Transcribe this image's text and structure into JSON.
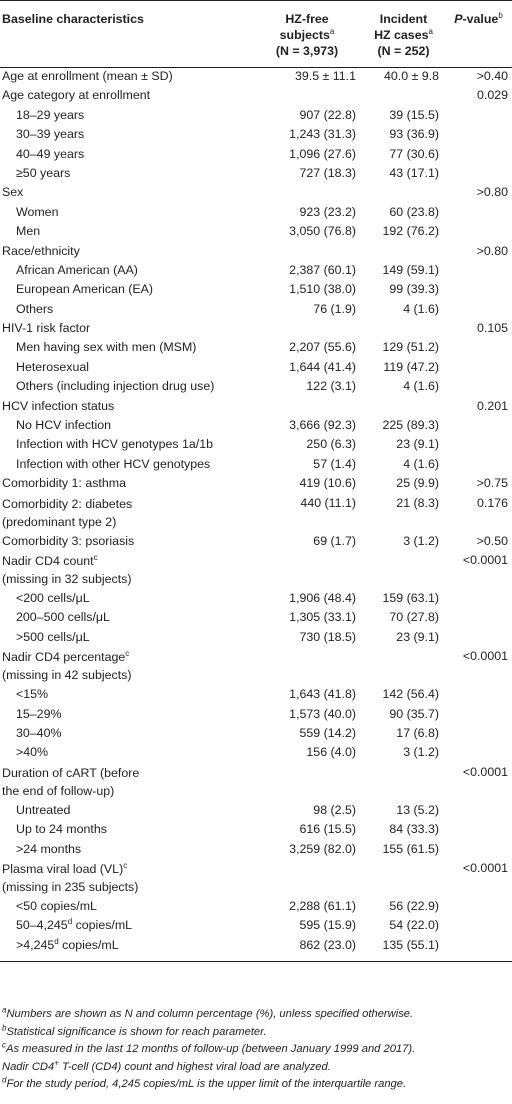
{
  "header": {
    "col1": "Baseline characteristics",
    "col2_line1": "HZ-free",
    "col2_line2": "subjects",
    "col2_sup": "a",
    "col2_line3": "(N = 3,973)",
    "col3_line1": "Incident",
    "col3_line2": "HZ cases",
    "col3_sup": "a",
    "col3_line3": "(N = 252)",
    "col4_italic": "P",
    "col4_rest": "-value",
    "col4_sup": "b"
  },
  "rows": [
    {
      "label": "Age at enrollment (mean ± SD)",
      "a": "39.5 ± 11.1",
      "b": "40.0 ± 9.8",
      "p": ">0.40"
    },
    {
      "label": "Age category at enrollment",
      "a": "",
      "b": "",
      "p": "0.029"
    },
    {
      "label": "18–29 years",
      "a": "907 (22.8)",
      "b": "39 (15.5)",
      "p": ""
    },
    {
      "label": "30–39 years",
      "a": "1,243 (31.3)",
      "b": "93 (36.9)",
      "p": ""
    },
    {
      "label": "40–49 years",
      "a": "1,096 (27.6)",
      "b": "77 (30.6)",
      "p": ""
    },
    {
      "label": "≥50 years",
      "a": "727 (18.3)",
      "b": "43 (17.1)",
      "p": ""
    },
    {
      "label": "Sex",
      "a": "",
      "b": "",
      "p": ">0.80"
    },
    {
      "label": "Women",
      "a": "923 (23.2)",
      "b": "60 (23.8)",
      "p": ""
    },
    {
      "label": "Men",
      "a": "3,050 (76.8)",
      "b": "192 (76.2)",
      "p": ""
    },
    {
      "label": "Race/ethnicity",
      "a": "",
      "b": "",
      "p": ">0.80"
    },
    {
      "label": "African American (AA)",
      "a": "2,387 (60.1)",
      "b": "149 (59.1)",
      "p": ""
    },
    {
      "label": "European American (EA)",
      "a": "1,510 (38.0)",
      "b": "99 (39.3)",
      "p": ""
    },
    {
      "label": "Others",
      "a": "76 (1.9)",
      "b": "4 (1.6)",
      "p": ""
    },
    {
      "label": "HIV-1 risk factor",
      "a": "",
      "b": "",
      "p": "0.105"
    },
    {
      "label": "Men having sex with men (MSM)",
      "a": "2,207 (55.6)",
      "b": "129 (51.2)",
      "p": ""
    },
    {
      "label": "Heterosexual",
      "a": "1,644 (41.4)",
      "b": "119 (47.2)",
      "p": ""
    },
    {
      "label": "Others (including injection drug use)",
      "a": "122 (3.1)",
      "b": "4 (1.6)",
      "p": ""
    },
    {
      "label": "HCV infection status",
      "a": "",
      "b": "",
      "p": "0.201"
    },
    {
      "label": "No HCV infection",
      "a": "3,666 (92.3)",
      "b": "225 (89.3)",
      "p": ""
    },
    {
      "label": "Infection with HCV genotypes 1a/1b",
      "a": "250 (6.3)",
      "b": "23 (9.1)",
      "p": ""
    },
    {
      "label": "Infection with other HCV genotypes",
      "a": "57 (1.4)",
      "b": "4 (1.6)",
      "p": ""
    },
    {
      "label": "Comorbidity 1: asthma",
      "a": "419 (10.6)",
      "b": "25 (9.9)",
      "p": ">0.75"
    },
    {
      "label": "Comorbidity 2: diabetes",
      "label2": "(predominant type 2)",
      "a": "440 (11.1)",
      "b": "21 (8.3)",
      "p": "0.176"
    },
    {
      "label": "Comorbidity 3: psoriasis",
      "a": "69 (1.7)",
      "b": "3 (1.2)",
      "p": ">0.50"
    },
    {
      "label": "Nadir CD4 count",
      "sup": "c",
      "label2": "(missing in 32 subjects)",
      "a": "",
      "b": "",
      "p": "<0.0001"
    },
    {
      "label": "<200 cells/μL",
      "a": "1,906 (48.4)",
      "b": "159 (63.1)",
      "p": ""
    },
    {
      "label": "200–500 cells/μL",
      "a": "1,305 (33.1)",
      "b": "70 (27.8)",
      "p": ""
    },
    {
      "label": ">500 cells/μL",
      "a": "730 (18.5)",
      "b": "23 (9.1)",
      "p": ""
    },
    {
      "label": "Nadir CD4 percentage",
      "sup": "c",
      "label2": "(missing in 42 subjects)",
      "a": "",
      "b": "",
      "p": "<0.0001"
    },
    {
      "label": "<15%",
      "a": "1,643 (41.8)",
      "b": "142 (56.4)",
      "p": ""
    },
    {
      "label": "15–29%",
      "a": "1,573 (40.0)",
      "b": "90 (35.7)",
      "p": ""
    },
    {
      "label": "30–40%",
      "a": "559 (14.2)",
      "b": "17 (6.8)",
      "p": ""
    },
    {
      "label": ">40%",
      "a": "156 (4.0)",
      "b": "3 (1.2)",
      "p": ""
    },
    {
      "label": "Duration of cART (before",
      "label2": "the end of follow-up)",
      "a": "",
      "b": "",
      "p": "<0.0001"
    },
    {
      "label": "Untreated",
      "a": "98 (2.5)",
      "b": "13 (5.2)",
      "p": ""
    },
    {
      "label": "Up to 24 months",
      "a": "616 (15.5)",
      "b": "84 (33.3)",
      "p": ""
    },
    {
      "label": ">24 months",
      "a": "3,259 (82.0)",
      "b": "155 (61.5)",
      "p": ""
    },
    {
      "label": "Plasma viral load (VL)",
      "sup": "c",
      "label2": "(missing in 235 subjects)",
      "a": "",
      "b": "",
      "p": "<0.0001"
    },
    {
      "label": "<50 copies/mL",
      "a": "2,288 (61.1)",
      "b": "56 (22.9)",
      "p": ""
    },
    {
      "label": "50–4,245",
      "sup": "d",
      "label_after": " copies/mL",
      "a": "595 (15.9)",
      "b": "54 (22.0)",
      "p": ""
    },
    {
      "label": ">4,245",
      "sup": "d",
      "label_after": " copies/mL",
      "a": "862 (23.0)",
      "b": "135 (55.1)",
      "p": ""
    }
  ],
  "footnotes": [
    {
      "mark": "a",
      "text": "Numbers are shown as N and column percentage (%), unless specified otherwise."
    },
    {
      "mark": "b",
      "text": "Statistical significance is shown for reach parameter."
    },
    {
      "mark": "c",
      "text": "As measured in the last 12 months of follow-up (between January 1999 and 2017).",
      "line2a": "Nadir CD4",
      "line2sup": "+",
      "line2b": " T-cell (CD4) count and highest viral load are analyzed."
    },
    {
      "mark": "d",
      "text": "For the study period, 4,245 copies/mL is the upper limit of the interquartile range."
    }
  ]
}
